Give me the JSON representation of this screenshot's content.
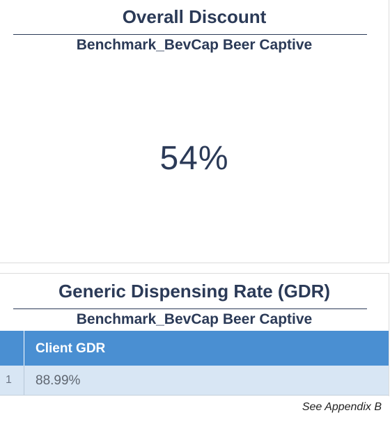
{
  "discount_panel": {
    "title": "Overall Discount",
    "subtitle": "Benchmark_BevCap Beer Captive",
    "value": "54%"
  },
  "gdr_panel": {
    "title": "Generic Dispensing Rate (GDR)",
    "subtitle": "Benchmark_BevCap Beer Captive",
    "table": {
      "header": "Client GDR",
      "rows": [
        {
          "index": "1",
          "value": "88.99%"
        }
      ]
    }
  },
  "footnote": "See Appendix B"
}
